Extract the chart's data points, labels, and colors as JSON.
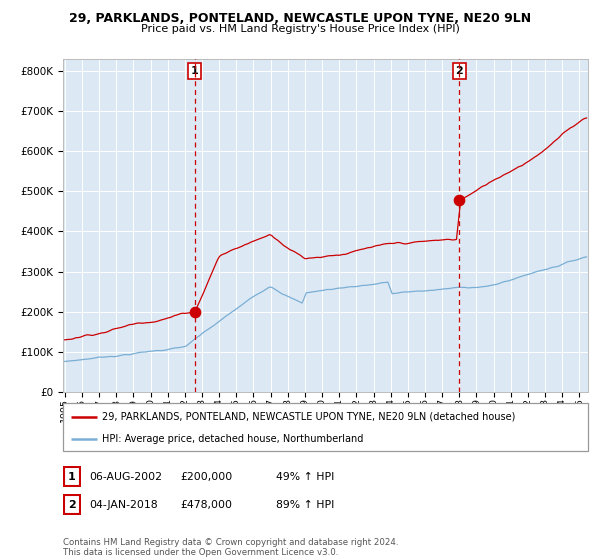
{
  "title1": "29, PARKLANDS, PONTELAND, NEWCASTLE UPON TYNE, NE20 9LN",
  "title2": "Price paid vs. HM Land Registry's House Price Index (HPI)",
  "legend_red": "29, PARKLANDS, PONTELAND, NEWCASTLE UPON TYNE, NE20 9LN (detached house)",
  "legend_blue": "HPI: Average price, detached house, Northumberland",
  "annotation1_date": "06-AUG-2002",
  "annotation1_price": "£200,000",
  "annotation1_hpi": "49% ↑ HPI",
  "annotation2_date": "04-JAN-2018",
  "annotation2_price": "£478,000",
  "annotation2_hpi": "89% ↑ HPI",
  "footer": "Contains HM Land Registry data © Crown copyright and database right 2024.\nThis data is licensed under the Open Government Licence v3.0.",
  "bg_color": "#dce9f5",
  "red_color": "#cc0000",
  "blue_color": "#7aaed4",
  "vline_color": "#cc0000",
  "ylim": [
    0,
    830000
  ],
  "yticks": [
    0,
    100000,
    200000,
    300000,
    400000,
    500000,
    600000,
    700000,
    800000
  ],
  "sale1_year": 2002.58,
  "sale2_year": 2018.0,
  "sale1_price": 200000,
  "sale2_price": 478000
}
